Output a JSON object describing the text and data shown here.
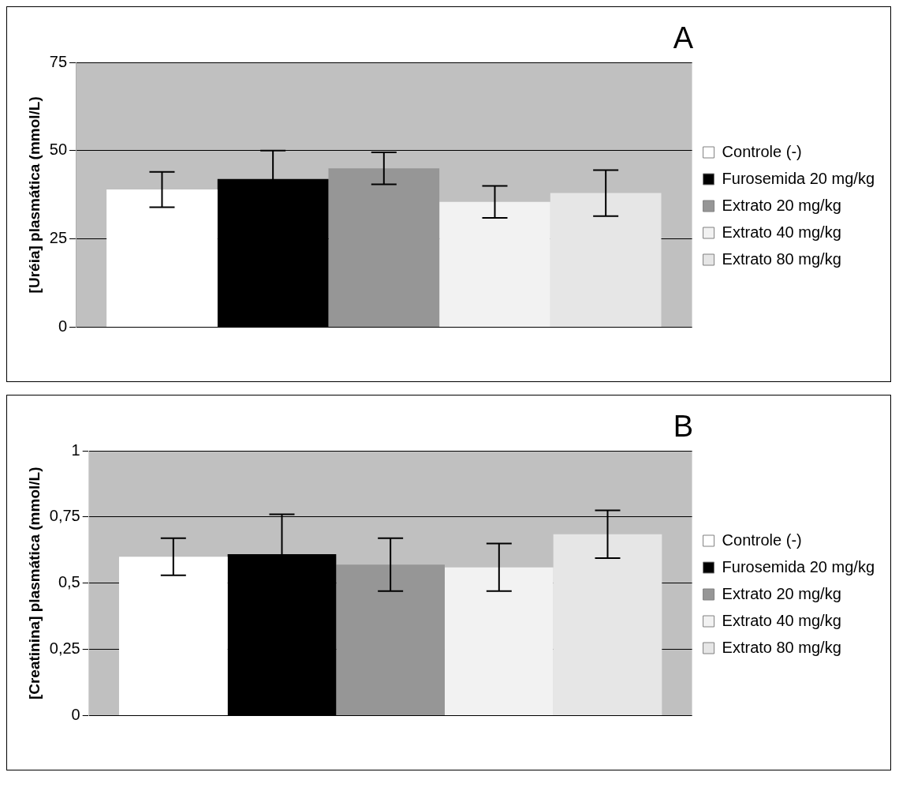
{
  "chart_data": [
    {
      "type": "bar",
      "title": "A",
      "ylabel": "[Uréia] plasmática (mmol/L)",
      "categories": [
        null
      ],
      "series": [
        {
          "name": "Controle (-)",
          "color": "#ffffff",
          "values": [
            39
          ],
          "errors": [
            5
          ]
        },
        {
          "name": "Furosemida 20 mg/kg",
          "color": "#000000",
          "values": [
            42
          ],
          "errors": [
            8
          ]
        },
        {
          "name": "Extrato 20 mg/kg",
          "color": "#969696",
          "values": [
            45
          ],
          "errors": [
            4.5
          ]
        },
        {
          "name": "Extrato 40 mg/kg",
          "color": "#f2f2f2",
          "values": [
            35.5
          ],
          "errors": [
            4.5
          ]
        },
        {
          "name": "Extrato 80 mg/kg",
          "color": "#e6e6e6",
          "values": [
            38
          ],
          "errors": [
            6.5
          ]
        }
      ],
      "ylim": [
        0,
        75
      ],
      "yticks": [
        0,
        25,
        50,
        75
      ],
      "grid": "y",
      "legend": "right"
    },
    {
      "type": "bar",
      "title": "B",
      "ylabel": "[Creatinina] plasmática (mmol/L)",
      "categories": [
        null
      ],
      "series": [
        {
          "name": "Controle (-)",
          "color": "#ffffff",
          "values": [
            0.6
          ],
          "errors": [
            0.07
          ]
        },
        {
          "name": "Furosemida 20 mg/kg",
          "color": "#000000",
          "values": [
            0.61
          ],
          "errors": [
            0.15
          ]
        },
        {
          "name": "Extrato 20 mg/kg",
          "color": "#969696",
          "values": [
            0.57
          ],
          "errors": [
            0.1
          ]
        },
        {
          "name": "Extrato 40 mg/kg",
          "color": "#f2f2f2",
          "values": [
            0.56
          ],
          "errors": [
            0.09
          ]
        },
        {
          "name": "Extrato 80 mg/kg",
          "color": "#e6e6e6",
          "values": [
            0.685
          ],
          "errors": [
            0.09
          ]
        }
      ],
      "ylim": [
        0,
        1
      ],
      "yticks": [
        0,
        {
          "value": 0.25,
          "label": "0,25"
        },
        {
          "value": 0.5,
          "label": "0,5"
        },
        {
          "value": 0.75,
          "label": "0,75"
        },
        1
      ],
      "grid": "y",
      "legend": "right"
    }
  ]
}
